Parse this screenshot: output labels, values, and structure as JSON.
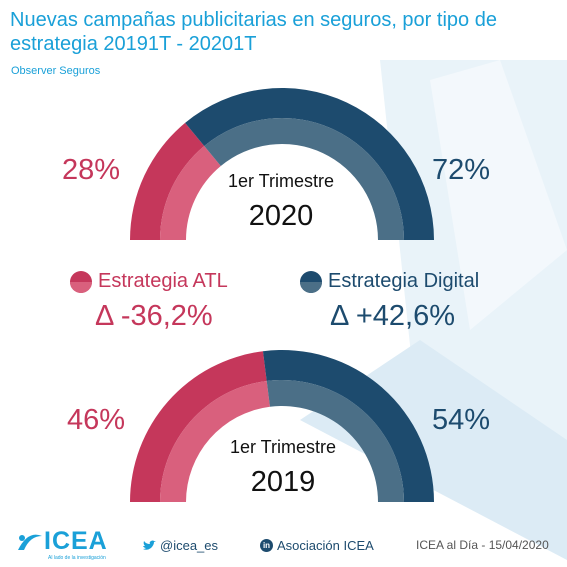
{
  "header": {
    "title": "Nuevas campañas publicitarias en seguros, por tipo de estrategia 20191T - 20201T",
    "subtitle": "Observer Seguros"
  },
  "colors": {
    "atl": "#c5375b",
    "atl_light": "#d9607d",
    "digital": "#1d4b6e",
    "digital_light": "#4b6f87",
    "brand": "#1aa0d8"
  },
  "gauges": {
    "g2020": {
      "period": "1er Trimestre",
      "year": "2020",
      "atl_label": "28%",
      "digital_label": "72%"
    },
    "g2019": {
      "period": "1er Trimestre",
      "year": "2019",
      "atl_label": "46%",
      "digital_label": "54%"
    }
  },
  "legend": {
    "atl": {
      "name": "Estrategia ATL",
      "delta": "Δ -36,2%"
    },
    "digital": {
      "name": "Estrategia Digital",
      "delta": "Δ +42,6%"
    }
  },
  "footer": {
    "logo_text": "ICEA",
    "logo_tagline": "Al lado de la investigación",
    "twitter": "@icea_es",
    "linkedin_badge": "in",
    "linkedin": "Asociación ICEA",
    "credit": "ICEA al Día - 15/04/2020"
  },
  "chart_data": [
    {
      "type": "pie",
      "title": "1er Trimestre 2020",
      "categories": [
        "Estrategia ATL",
        "Estrategia Digital"
      ],
      "values": [
        28,
        72
      ]
    },
    {
      "type": "pie",
      "title": "1er Trimestre 2019",
      "categories": [
        "Estrategia ATL",
        "Estrategia Digital"
      ],
      "values": [
        46,
        54
      ]
    }
  ]
}
